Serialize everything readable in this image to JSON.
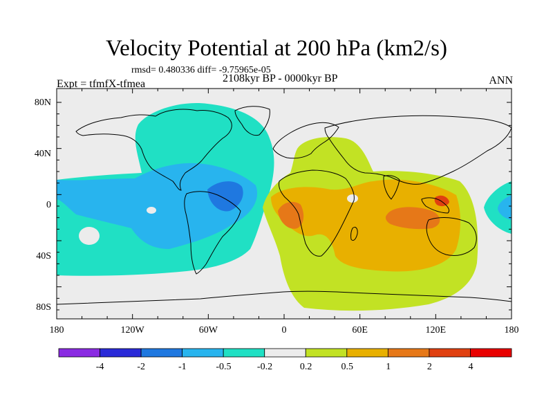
{
  "title": "Velocity Potential at 200 hPa (km2/s)",
  "stats": "rmsd= 0.480336 diff= -9.75965e-05",
  "experiment": "Expt = tfmfX-tfmea",
  "period": "2108kyr BP - 0000kyr BP",
  "season": "ANN",
  "axes": {
    "x_ticks": [
      "180",
      "120W",
      "60W",
      "0",
      "60E",
      "120E",
      "180"
    ],
    "y_ticks": [
      "80N",
      "40N",
      "0",
      "40S",
      "80S"
    ]
  },
  "colorbar": {
    "colors": [
      "#8a2be2",
      "#2a2ad8",
      "#1f78e0",
      "#28b4ee",
      "#20e0c4",
      "#ececec",
      "#c2e224",
      "#e8b000",
      "#e67818",
      "#e04010",
      "#e80000"
    ],
    "labels": [
      "-4",
      "-2",
      "-1",
      "-0.5",
      "-0.2",
      "0.2",
      "0.5",
      "1",
      "2",
      "4"
    ]
  }
}
